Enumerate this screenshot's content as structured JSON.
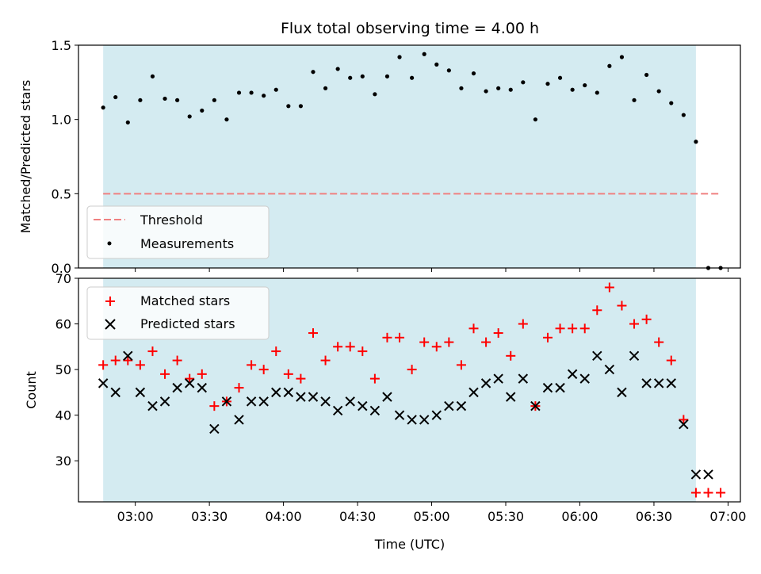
{
  "chart_data": [
    {
      "type": "scatter",
      "title": "Flux total observing time = 4.00 h",
      "ylabel": "Matched/Predicted stars",
      "ylim": [
        0,
        1.5
      ],
      "yticks": [
        "0.0",
        "0.5",
        "1.0",
        "1.5"
      ],
      "shaded_x_range": [
        "02:47",
        "06:47"
      ],
      "legend_placement": "lower-left",
      "series": [
        {
          "name": "Threshold",
          "style": "dashed-line",
          "color": "#f08080",
          "x": [
            "02:47",
            "06:57"
          ],
          "y": [
            0.5,
            0.5
          ]
        },
        {
          "name": "Measurements",
          "style": "dot",
          "color": "#000000",
          "x": [
            "02:47",
            "02:52",
            "02:57",
            "03:02",
            "03:07",
            "03:12",
            "03:17",
            "03:22",
            "03:27",
            "03:32",
            "03:37",
            "03:42",
            "03:47",
            "03:52",
            "03:57",
            "04:02",
            "04:07",
            "04:12",
            "04:17",
            "04:22",
            "04:27",
            "04:32",
            "04:37",
            "04:42",
            "04:47",
            "04:52",
            "04:57",
            "05:02",
            "05:07",
            "05:12",
            "05:17",
            "05:22",
            "05:27",
            "05:32",
            "05:37",
            "05:42",
            "05:47",
            "05:52",
            "05:57",
            "06:02",
            "06:07",
            "06:12",
            "06:17",
            "06:22",
            "06:27",
            "06:32",
            "06:37",
            "06:42",
            "06:47",
            "06:52",
            "06:57"
          ],
          "y": [
            1.08,
            1.15,
            0.98,
            1.13,
            1.29,
            1.14,
            1.13,
            1.02,
            1.06,
            1.13,
            1.0,
            1.18,
            1.18,
            1.16,
            1.2,
            1.09,
            1.09,
            1.32,
            1.21,
            1.34,
            1.28,
            1.29,
            1.17,
            1.29,
            1.42,
            1.28,
            1.44,
            1.37,
            1.33,
            1.21,
            1.31,
            1.19,
            1.21,
            1.2,
            1.25,
            1.0,
            1.24,
            1.28,
            1.2,
            1.23,
            1.18,
            1.36,
            1.42,
            1.13,
            1.3,
            1.19,
            1.11,
            1.03,
            0.85,
            0.0,
            0.0
          ]
        }
      ]
    },
    {
      "type": "scatter",
      "xlabel": "Time (UTC)",
      "ylabel": "Count",
      "ylim": [
        21,
        70
      ],
      "yticks": [
        "30",
        "40",
        "50",
        "60",
        "70"
      ],
      "xticks": [
        "03:00",
        "03:30",
        "04:00",
        "04:30",
        "05:00",
        "05:30",
        "06:00",
        "06:30",
        "07:00"
      ],
      "xtick_values": [
        "03:00",
        "03:30",
        "04:00",
        "04:30",
        "05:00",
        "05:30",
        "06:00",
        "06:30",
        "07:00"
      ],
      "xlim": [
        "02:37",
        "07:05"
      ],
      "shaded_x_range": [
        "02:47",
        "06:47"
      ],
      "legend_placement": "upper-left",
      "series": [
        {
          "name": "Matched stars",
          "style": "plus",
          "color": "#ff0000",
          "x": [
            "02:47",
            "02:52",
            "02:57",
            "03:02",
            "03:07",
            "03:12",
            "03:17",
            "03:22",
            "03:27",
            "03:32",
            "03:37",
            "03:42",
            "03:47",
            "03:52",
            "03:57",
            "04:02",
            "04:07",
            "04:12",
            "04:17",
            "04:22",
            "04:27",
            "04:32",
            "04:37",
            "04:42",
            "04:47",
            "04:52",
            "04:57",
            "05:02",
            "05:07",
            "05:12",
            "05:17",
            "05:22",
            "05:27",
            "05:32",
            "05:37",
            "05:42",
            "05:47",
            "05:52",
            "05:57",
            "06:02",
            "06:07",
            "06:12",
            "06:17",
            "06:22",
            "06:27",
            "06:32",
            "06:37",
            "06:42",
            "06:47",
            "06:52",
            "06:57"
          ],
          "y": [
            51,
            52,
            52,
            51,
            54,
            49,
            52,
            48,
            49,
            42,
            43,
            46,
            51,
            50,
            54,
            49,
            48,
            58,
            52,
            55,
            55,
            54,
            48,
            57,
            57,
            50,
            56,
            55,
            56,
            51,
            59,
            56,
            58,
            53,
            60,
            42,
            57,
            59,
            59,
            59,
            63,
            68,
            64,
            60,
            61,
            56,
            52,
            39,
            23,
            23,
            23
          ]
        },
        {
          "name": "Predicted stars",
          "style": "x",
          "color": "#000000",
          "x": [
            "02:47",
            "02:52",
            "02:57",
            "03:02",
            "03:07",
            "03:12",
            "03:17",
            "03:22",
            "03:27",
            "03:32",
            "03:37",
            "03:42",
            "03:47",
            "03:52",
            "03:57",
            "04:02",
            "04:07",
            "04:12",
            "04:17",
            "04:22",
            "04:27",
            "04:32",
            "04:37",
            "04:42",
            "04:47",
            "04:52",
            "04:57",
            "05:02",
            "05:07",
            "05:12",
            "05:17",
            "05:22",
            "05:27",
            "05:32",
            "05:37",
            "05:42",
            "05:47",
            "05:52",
            "05:57",
            "06:02",
            "06:07",
            "06:12",
            "06:17",
            "06:22",
            "06:27",
            "06:32",
            "06:37",
            "06:42",
            "06:47",
            "06:52"
          ],
          "y": [
            47,
            45,
            53,
            45,
            42,
            43,
            46,
            47,
            46,
            37,
            43,
            39,
            43,
            43,
            45,
            45,
            44,
            44,
            43,
            41,
            43,
            42,
            41,
            44,
            40,
            39,
            39,
            40,
            42,
            42,
            45,
            47,
            48,
            44,
            48,
            42,
            46,
            46,
            49,
            48,
            53,
            50,
            45,
            53,
            47,
            47,
            47,
            38,
            27,
            27
          ]
        }
      ]
    }
  ],
  "colors": {
    "shade": "#d4ebf1",
    "threshold": "#f08080",
    "matched": "#ff0000",
    "predicted": "#000000"
  }
}
